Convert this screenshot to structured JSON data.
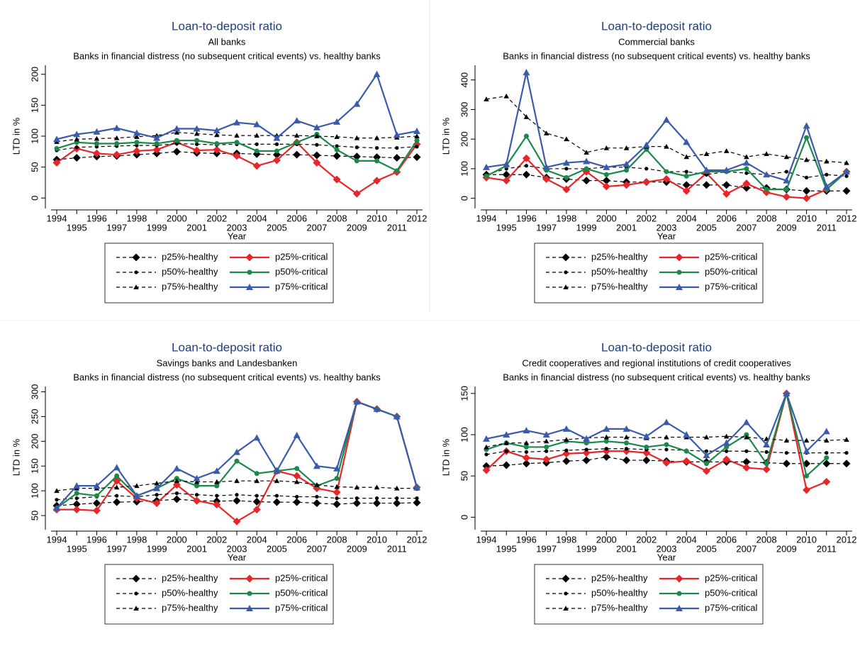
{
  "chart_data": [
    {
      "type": "line",
      "title": "Loan-to-deposit ratio",
      "subtitles": [
        "All banks",
        "Banks in financial distress (no subsequent critical events) vs. healthy banks"
      ],
      "x_label": "Year",
      "y_label": "LTD in %",
      "legend": "below",
      "x": [
        1994,
        1995,
        1996,
        1997,
        1998,
        1999,
        2000,
        2001,
        2002,
        2003,
        2004,
        2005,
        2006,
        2007,
        2008,
        2009,
        2010,
        2011,
        2012
      ],
      "xlim": [
        1994,
        2012
      ],
      "ylim": [
        -10,
        210
      ],
      "yticks": [
        0,
        50,
        100,
        150,
        200
      ],
      "series": [
        {
          "name": "p25%-healthy",
          "color": "#000000",
          "dash": true,
          "marker": "diamond",
          "values": [
            62,
            65,
            67,
            68,
            70,
            72,
            75,
            73,
            72,
            72,
            71,
            70,
            70,
            69,
            68,
            67,
            66,
            65,
            66
          ]
        },
        {
          "name": "p25%-critical",
          "color": "#e8262a",
          "dash": false,
          "marker": "diamond",
          "values": [
            57,
            80,
            72,
            70,
            76,
            78,
            90,
            77,
            78,
            68,
            52,
            61,
            90,
            57,
            30,
            7,
            28,
            42,
            87
          ]
        },
        {
          "name": "p50%-healthy",
          "color": "#000000",
          "dash": true,
          "marker": "dot",
          "values": [
            77,
            82,
            83,
            84,
            85,
            85,
            88,
            87,
            86,
            87,
            87,
            87,
            87,
            86,
            84,
            82,
            81,
            81,
            83
          ]
        },
        {
          "name": "p50%-critical",
          "color": "#1a8a4a",
          "dash": false,
          "marker": "dot",
          "values": [
            80,
            90,
            88,
            88,
            90,
            88,
            93,
            93,
            88,
            90,
            76,
            76,
            90,
            103,
            78,
            60,
            60,
            44,
            93
          ]
        },
        {
          "name": "p75%-healthy",
          "color": "#000000",
          "dash": true,
          "marker": "triangle",
          "values": [
            91,
            95,
            96,
            97,
            99,
            101,
            106,
            104,
            102,
            101,
            101,
            101,
            101,
            100,
            99,
            97,
            97,
            98,
            100
          ]
        },
        {
          "name": "p75%-critical",
          "color": "#3a5bab",
          "dash": false,
          "marker": "triangle",
          "values": [
            95,
            103,
            107,
            113,
            105,
            97,
            112,
            112,
            109,
            122,
            119,
            97,
            125,
            114,
            123,
            152,
            200,
            102,
            108
          ]
        }
      ]
    },
    {
      "type": "line",
      "title": "Loan-to-deposit ratio",
      "subtitles": [
        "Commercial banks",
        "Banks in financial distress (no subsequent critical events) vs. healthy banks"
      ],
      "x_label": "Year",
      "y_label": "LTD in %",
      "legend": "below",
      "x": [
        1994,
        1995,
        1996,
        1997,
        1998,
        1999,
        2000,
        2001,
        2002,
        2003,
        2004,
        2005,
        2006,
        2007,
        2008,
        2009,
        2010,
        2011,
        2012
      ],
      "xlim": [
        1994,
        2012
      ],
      "ylim": [
        -20,
        440
      ],
      "yticks": [
        0,
        100,
        200,
        300,
        400
      ],
      "series": [
        {
          "name": "p25%-healthy",
          "color": "#000000",
          "dash": true,
          "marker": "diamond",
          "values": [
            80,
            80,
            80,
            70,
            65,
            60,
            60,
            55,
            55,
            55,
            45,
            45,
            45,
            35,
            35,
            30,
            25,
            25,
            25
          ]
        },
        {
          "name": "p25%-critical",
          "color": "#e8262a",
          "dash": false,
          "marker": "diamond",
          "values": [
            70,
            60,
            135,
            65,
            30,
            90,
            40,
            45,
            55,
            65,
            25,
            85,
            15,
            50,
            20,
            5,
            0,
            30,
            90
          ]
        },
        {
          "name": "p50%-healthy",
          "color": "#000000",
          "dash": true,
          "marker": "dot",
          "values": [
            80,
            100,
            110,
            100,
            100,
            100,
            105,
            105,
            100,
            90,
            90,
            80,
            90,
            85,
            80,
            90,
            70,
            80,
            75
          ]
        },
        {
          "name": "p50%-critical",
          "color": "#1a8a4a",
          "dash": false,
          "marker": "dot",
          "values": [
            75,
            110,
            210,
            95,
            70,
            100,
            80,
            95,
            165,
            90,
            75,
            90,
            90,
            100,
            30,
            30,
            205,
            30,
            90
          ]
        },
        {
          "name": "p75%-healthy",
          "color": "#000000",
          "dash": true,
          "marker": "triangle",
          "values": [
            335,
            345,
            275,
            220,
            200,
            155,
            170,
            170,
            175,
            175,
            140,
            150,
            160,
            140,
            150,
            140,
            130,
            125,
            120
          ]
        },
        {
          "name": "p75%-critical",
          "color": "#3a5bab",
          "dash": false,
          "marker": "triangle",
          "values": [
            105,
            115,
            425,
            105,
            120,
            125,
            105,
            115,
            180,
            265,
            190,
            95,
            95,
            120,
            80,
            60,
            245,
            40,
            90
          ]
        }
      ]
    },
    {
      "type": "line",
      "title": "Loan-to-deposit ratio",
      "subtitles": [
        "Savings banks and Landesbanken",
        "Banks in financial distress (no subsequent critical events) vs. healthy banks"
      ],
      "x_label": "Year",
      "y_label": "LTD in %",
      "legend": "below",
      "x": [
        1994,
        1995,
        1996,
        1997,
        1998,
        1999,
        2000,
        2001,
        2002,
        2003,
        2004,
        2005,
        2006,
        2007,
        2008,
        2009,
        2010,
        2011,
        2012
      ],
      "xlim": [
        1994,
        2012
      ],
      "ylim": [
        30,
        305
      ],
      "yticks": [
        50,
        100,
        150,
        200,
        250,
        300
      ],
      "series": [
        {
          "name": "p25%-healthy",
          "color": "#000000",
          "dash": true,
          "marker": "diamond",
          "values": [
            70,
            73,
            75,
            77,
            78,
            80,
            83,
            80,
            79,
            80,
            78,
            77,
            77,
            75,
            73,
            75,
            75,
            75,
            76
          ]
        },
        {
          "name": "p25%-critical",
          "color": "#e8262a",
          "dash": false,
          "marker": "diamond",
          "values": [
            62,
            62,
            60,
            120,
            85,
            75,
            112,
            80,
            72,
            38,
            62,
            140,
            130,
            105,
            97,
            280,
            265,
            250,
            107
          ]
        },
        {
          "name": "p50%-healthy",
          "color": "#000000",
          "dash": true,
          "marker": "dot",
          "values": [
            82,
            85,
            88,
            90,
            88,
            92,
            95,
            92,
            90,
            92,
            90,
            90,
            88,
            88,
            85,
            85,
            85,
            85,
            85
          ]
        },
        {
          "name": "p50%-critical",
          "color": "#1a8a4a",
          "dash": false,
          "marker": "dot",
          "values": [
            65,
            95,
            90,
            130,
            90,
            105,
            125,
            110,
            110,
            160,
            135,
            140,
            145,
            110,
            125,
            280,
            265,
            250,
            107
          ]
        },
        {
          "name": "p75%-healthy",
          "color": "#000000",
          "dash": true,
          "marker": "triangle",
          "values": [
            100,
            105,
            105,
            107,
            110,
            115,
            120,
            118,
            118,
            120,
            120,
            120,
            118,
            112,
            108,
            107,
            107,
            105,
            105
          ]
        },
        {
          "name": "p75%-critical",
          "color": "#3a5bab",
          "dash": false,
          "marker": "triangle",
          "values": [
            65,
            110,
            110,
            147,
            90,
            105,
            145,
            125,
            140,
            178,
            207,
            140,
            212,
            150,
            145,
            280,
            265,
            250,
            107
          ]
        }
      ]
    },
    {
      "type": "line",
      "title": "Loan-to-deposit ratio",
      "subtitles": [
        "Credit cooperatives and regional institutions of credit cooperatives",
        "Banks in financial distress (no subsequent critical events) vs. healthy banks"
      ],
      "x_label": "Year",
      "y_label": "LTD in %",
      "legend": "below",
      "x": [
        1994,
        1995,
        1996,
        1997,
        1998,
        1999,
        2000,
        2001,
        2002,
        2003,
        2004,
        2005,
        2006,
        2007,
        2008,
        2009,
        2010,
        2011,
        2012
      ],
      "xlim": [
        1994,
        2012
      ],
      "ylim": [
        -10,
        155
      ],
      "yticks": [
        0,
        50,
        100,
        150
      ],
      "series": [
        {
          "name": "p25%-healthy",
          "color": "#000000",
          "dash": true,
          "marker": "diamond",
          "values": [
            62,
            63,
            65,
            66,
            68,
            69,
            73,
            69,
            69,
            68,
            67,
            67,
            67,
            67,
            66,
            65,
            65,
            65,
            65
          ]
        },
        {
          "name": "p25%-critical",
          "color": "#e8262a",
          "dash": false,
          "marker": "diamond",
          "values": [
            57,
            80,
            72,
            70,
            77,
            78,
            80,
            80,
            78,
            66,
            68,
            56,
            70,
            60,
            58,
            150,
            33,
            43,
            null
          ]
        },
        {
          "name": "p50%-healthy",
          "color": "#000000",
          "dash": true,
          "marker": "dot",
          "values": [
            76,
            80,
            79,
            80,
            81,
            82,
            83,
            83,
            82,
            82,
            81,
            80,
            80,
            80,
            79,
            78,
            78,
            78,
            78
          ]
        },
        {
          "name": "p50%-critical",
          "color": "#1a8a4a",
          "dash": false,
          "marker": "dot",
          "values": [
            82,
            90,
            85,
            85,
            92,
            90,
            92,
            90,
            85,
            88,
            80,
            65,
            85,
            100,
            65,
            150,
            50,
            72,
            null
          ]
        },
        {
          "name": "p75%-healthy",
          "color": "#000000",
          "dash": true,
          "marker": "triangle",
          "values": [
            85,
            90,
            90,
            92,
            94,
            96,
            97,
            97,
            96,
            97,
            97,
            97,
            98,
            97,
            95,
            93,
            93,
            93,
            94
          ]
        },
        {
          "name": "p75%-critical",
          "color": "#3a5bab",
          "dash": false,
          "marker": "triangle",
          "values": [
            95,
            100,
            105,
            100,
            107,
            95,
            107,
            107,
            98,
            115,
            100,
            75,
            90,
            115,
            88,
            150,
            80,
            104,
            null
          ]
        }
      ]
    }
  ]
}
